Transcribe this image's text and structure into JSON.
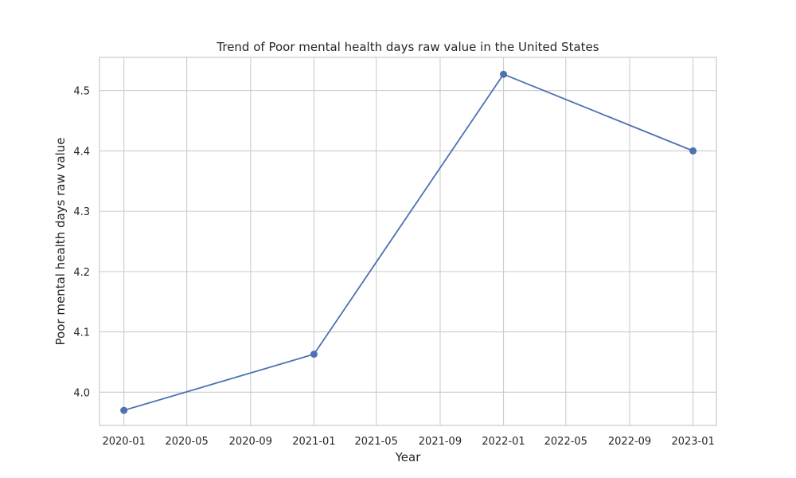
{
  "chart_data": {
    "type": "line",
    "title": "Trend of Poor mental health days raw value in the United States",
    "xlabel": "Year",
    "ylabel": "Poor mental health days raw value",
    "x": [
      "2020-01-01",
      "2021-01-01",
      "2022-01-01",
      "2023-01-01"
    ],
    "series": [
      {
        "values": [
          3.97,
          4.063,
          4.527,
          4.4
        ]
      }
    ],
    "xlim": [
      "2019-11-15",
      "2023-02-15"
    ],
    "ylim": [
      3.945,
      4.555
    ],
    "x_ticks": [
      "2020-01",
      "2020-05",
      "2020-09",
      "2021-01",
      "2021-05",
      "2021-09",
      "2022-01",
      "2022-05",
      "2022-09",
      "2023-01"
    ],
    "y_ticks": [
      "4.0",
      "4.1",
      "4.2",
      "4.3",
      "4.4",
      "4.5"
    ],
    "grid": true,
    "markers": "circle",
    "colors": {
      "line": "#4c72b0",
      "grid": "#cccccc",
      "spine": "#cccccc",
      "text": "#262626"
    }
  }
}
